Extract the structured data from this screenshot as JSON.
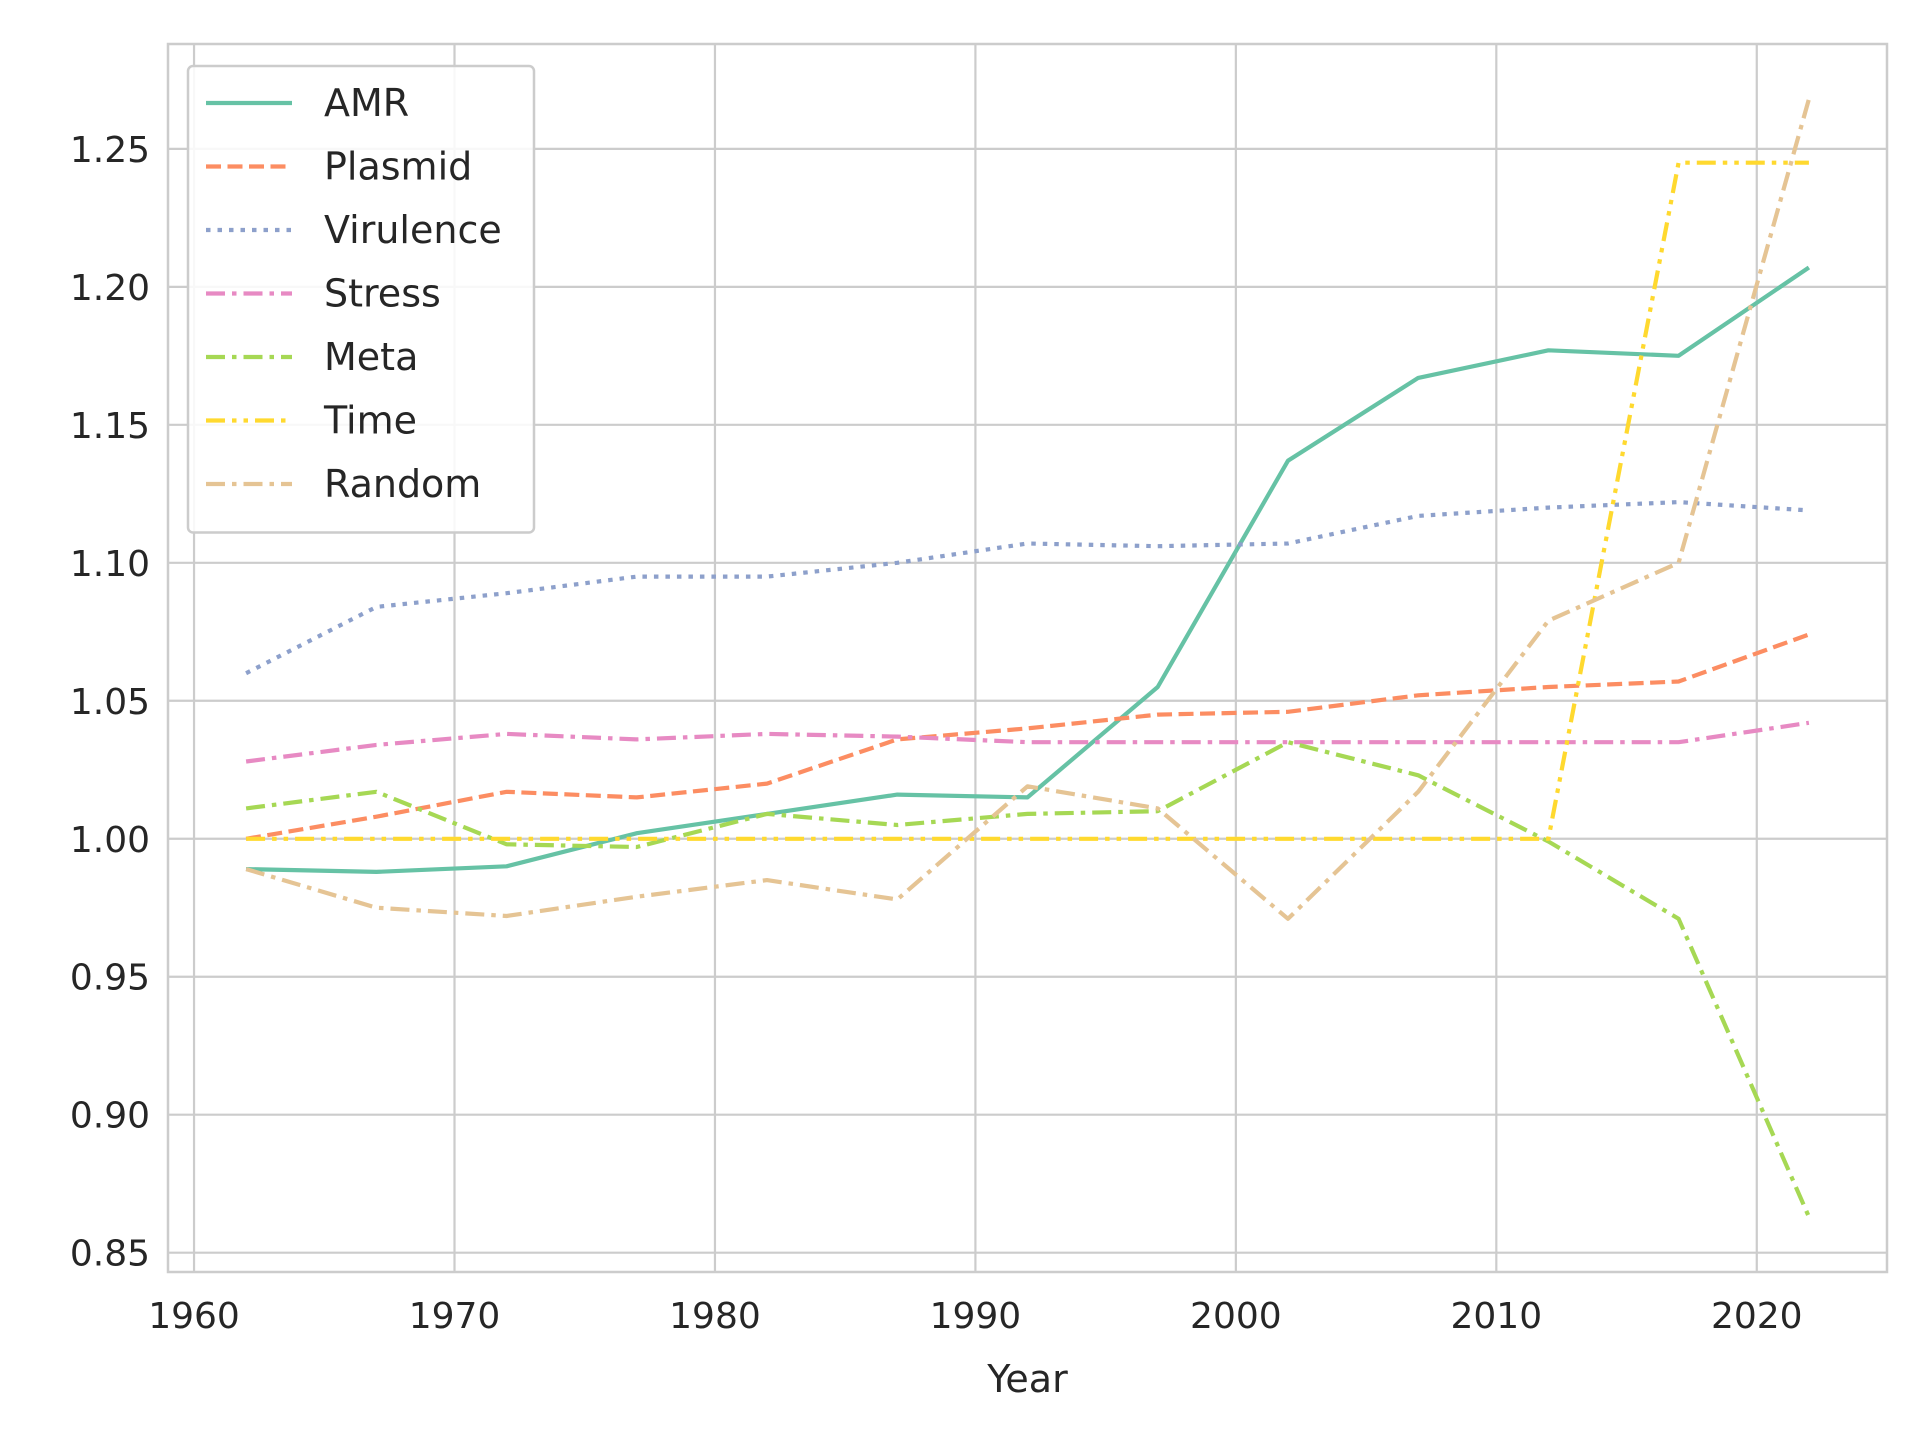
{
  "chart_data": {
    "type": "line",
    "title": "",
    "xlabel": "Year",
    "ylabel": "",
    "xlim": [
      1959.0,
      2025.0
    ],
    "ylim": [
      0.843,
      1.288
    ],
    "xticks": [
      1960,
      1970,
      1980,
      1990,
      2000,
      2010,
      2020
    ],
    "yticks": [
      0.85,
      0.9,
      0.95,
      1.0,
      1.05,
      1.1,
      1.15,
      1.2,
      1.25
    ],
    "xtick_labels": [
      "1960",
      "1970",
      "1980",
      "1990",
      "2000",
      "2010",
      "2020"
    ],
    "ytick_labels": [
      "0.85",
      "0.90",
      "0.95",
      "1.00",
      "1.05",
      "1.10",
      "1.15",
      "1.20",
      "1.25"
    ],
    "grid": true,
    "legend_position": "top-left",
    "x": [
      1962,
      1967,
      1972,
      1977,
      1982,
      1987,
      1992,
      1997,
      2002,
      2007,
      2012,
      2017,
      2022
    ],
    "series": [
      {
        "name": "AMR",
        "color": "#66c2a5",
        "dash": "solid",
        "values": [
          0.989,
          0.988,
          0.99,
          1.002,
          1.009,
          1.016,
          1.015,
          1.055,
          1.137,
          1.167,
          1.177,
          1.175,
          1.207
        ]
      },
      {
        "name": "Plasmid",
        "color": "#fc8d62",
        "dash": "dashed",
        "values": [
          1.0,
          1.008,
          1.017,
          1.015,
          1.02,
          1.036,
          1.04,
          1.045,
          1.046,
          1.052,
          1.055,
          1.057,
          1.074
        ]
      },
      {
        "name": "Virulence",
        "color": "#8da0cb",
        "dash": "dotted",
        "values": [
          1.06,
          1.084,
          1.089,
          1.095,
          1.095,
          1.1,
          1.107,
          1.106,
          1.107,
          1.117,
          1.12,
          1.122,
          1.119
        ]
      },
      {
        "name": "Stress",
        "color": "#e78ac3",
        "dash": "dashdot",
        "values": [
          1.028,
          1.034,
          1.038,
          1.036,
          1.038,
          1.037,
          1.035,
          1.035,
          1.035,
          1.035,
          1.035,
          1.035,
          1.042
        ]
      },
      {
        "name": "Meta",
        "color": "#a6d854",
        "dash": "dashdot",
        "values": [
          1.011,
          1.017,
          0.998,
          0.997,
          1.009,
          1.005,
          1.009,
          1.01,
          1.035,
          1.023,
          0.999,
          0.971,
          0.863
        ]
      },
      {
        "name": "Time",
        "color": "#ffd92f",
        "dash": "dashdotdot",
        "values": [
          1.0,
          1.0,
          1.0,
          1.0,
          1.0,
          1.0,
          1.0,
          1.0,
          1.0,
          1.0,
          1.0,
          1.245,
          1.245
        ]
      },
      {
        "name": "Random",
        "color": "#e5c494",
        "dash": "dashdot",
        "values": [
          0.989,
          0.975,
          0.972,
          0.979,
          0.985,
          0.978,
          1.019,
          1.011,
          0.971,
          1.017,
          1.079,
          1.1,
          1.268
        ]
      }
    ]
  }
}
